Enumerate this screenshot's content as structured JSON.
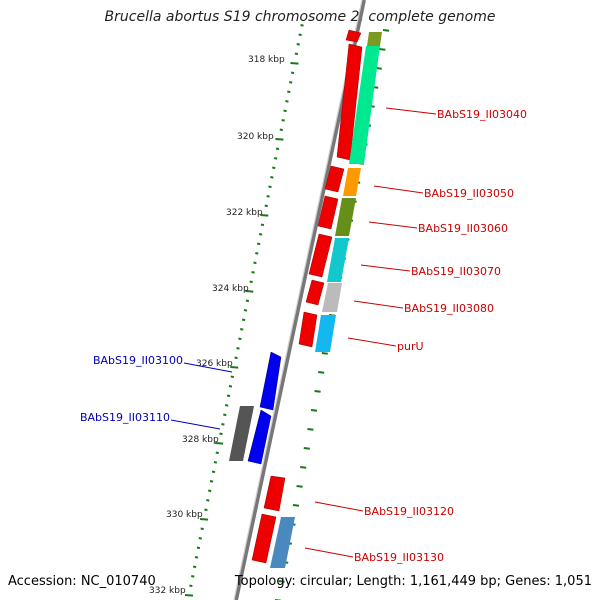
{
  "title": "Brucella abortus S19 chromosome 2, complete genome",
  "accession": "Accession: NC_010740",
  "topology": "Topology: circular; Length: 1,161,449 bp; Genes: 1,051",
  "colors": {
    "backbone": "#777777",
    "tick": "#1a7a1a",
    "forward_label": "#cc0000",
    "reverse_label": "#0000bb"
  },
  "ticks": [
    {
      "kbp": 318,
      "label": "318 kbp"
    },
    {
      "kbp": 320,
      "label": "320 kbp"
    },
    {
      "kbp": 322,
      "label": "322 kbp"
    },
    {
      "kbp": 324,
      "label": "324 kbp"
    },
    {
      "kbp": 326,
      "label": "326 kbp"
    },
    {
      "kbp": 328,
      "label": "328 kbp"
    },
    {
      "kbp": 330,
      "label": "330 kbp"
    },
    {
      "kbp": 332,
      "label": "332 kbp"
    }
  ],
  "genes": [
    {
      "id": "BAbS19_II03040",
      "strand": "+",
      "cog": "#00e890"
    },
    {
      "id": "BAbS19_II03050",
      "strand": "+",
      "cog": "#ff9900"
    },
    {
      "id": "BAbS19_II03060",
      "strand": "+",
      "cog": "#668f1a"
    },
    {
      "id": "BAbS19_II03070",
      "strand": "+",
      "cog": "#12c8cc"
    },
    {
      "id": "BAbS19_II03080",
      "strand": "+",
      "cog": "#bbbbbb"
    },
    {
      "id": "purU",
      "strand": "+",
      "cog": "#14b8f0"
    },
    {
      "id": "BAbS19_II03100",
      "strand": "-",
      "cog": "#0000ee"
    },
    {
      "id": "BAbS19_II03110",
      "strand": "-",
      "cog": "#0000ee"
    },
    {
      "id": "BAbS19_II03120",
      "strand": "+",
      "cog": "#ee0000"
    },
    {
      "id": "BAbS19_II03130",
      "strand": "+",
      "cog": "#4a88c0"
    }
  ]
}
